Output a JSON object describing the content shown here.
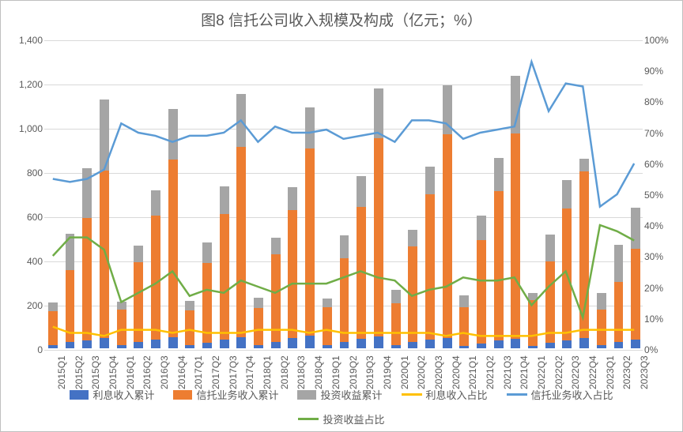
{
  "title": "图8  信托公司收入规模及构成（亿元；%）",
  "colors": {
    "bar_interest": "#4472c4",
    "bar_trust": "#ed7d31",
    "bar_invest": "#a5a5a5",
    "line_interest": "#ffc000",
    "line_trust": "#5b9bd5",
    "line_invest": "#70ad47",
    "gridline": "#d9d9d9",
    "text": "#595959",
    "background": "#ffffff"
  },
  "left_axis": {
    "min": 0,
    "max": 1400,
    "step": 200
  },
  "right_axis": {
    "min": 0,
    "max": 100,
    "step": 10
  },
  "categories": [
    "2015Q1",
    "2015Q2",
    "2015Q3",
    "2015Q4",
    "2016Q1",
    "2016Q2",
    "2016Q3",
    "2016Q4",
    "2017Q1",
    "2017Q2",
    "2017Q3",
    "2017Q4",
    "2018Q1",
    "2018Q2",
    "2018Q3",
    "2018Q4",
    "2019Q1",
    "2019Q2",
    "2019Q3",
    "2019Q4",
    "2020Q1",
    "2020Q2",
    "2020Q3",
    "2020Q4",
    "2021Q1",
    "2021Q2",
    "2021Q3",
    "2021Q4",
    "2022Q1",
    "2022Q2",
    "2022Q3",
    "2022Q4",
    "2023Q1",
    "2023Q2",
    "2023Q3"
  ],
  "bars": {
    "interest": [
      14,
      27,
      35,
      45,
      13,
      27,
      40,
      49,
      13,
      25,
      38,
      49,
      14,
      29,
      45,
      58,
      13,
      28,
      42,
      54,
      13,
      27,
      40,
      48,
      11,
      22,
      34,
      42,
      11,
      24,
      36,
      48,
      15,
      29,
      40
    ],
    "trust": [
      155,
      325,
      555,
      760,
      162,
      362,
      560,
      805,
      160,
      362,
      570,
      860,
      168,
      395,
      580,
      845,
      172,
      378,
      597,
      895,
      192,
      435,
      655,
      920,
      175,
      468,
      677,
      930,
      206,
      370,
      595,
      753,
      160,
      270,
      410
    ],
    "invest": [
      40,
      165,
      225,
      320,
      35,
      75,
      115,
      230,
      40,
      90,
      125,
      242,
      48,
      75,
      105,
      187,
      40,
      105,
      140,
      225,
      60,
      72,
      127,
      220,
      52,
      110,
      148,
      260,
      32,
      122,
      130,
      55,
      75,
      170,
      185
    ]
  },
  "lines": {
    "interest_pct": [
      7,
      5,
      5,
      4,
      6,
      6,
      6,
      5,
      6,
      5,
      5,
      5,
      6,
      6,
      6,
      5,
      6,
      5,
      5,
      5,
      5,
      5,
      5,
      4,
      5,
      4,
      4,
      4,
      4,
      5,
      5,
      6,
      6,
      6,
      6
    ],
    "trust_pct": [
      55,
      54,
      55,
      58,
      73,
      70,
      69,
      67,
      69,
      69,
      70,
      74,
      67,
      72,
      70,
      70,
      71,
      68,
      69,
      70,
      67,
      74,
      74,
      73,
      68,
      70,
      71,
      72,
      93,
      77,
      86,
      85,
      46,
      50,
      60
    ],
    "invest_pct": [
      30,
      36,
      36,
      32,
      15,
      18,
      21,
      25,
      17,
      19,
      18,
      22,
      20,
      18,
      21,
      21,
      21,
      23,
      25,
      23,
      22,
      17,
      19,
      20,
      23,
      22,
      22,
      23,
      14,
      20,
      25,
      10,
      40,
      38,
      35
    ]
  },
  "legend": {
    "bar_interest": "利息收入累计",
    "bar_trust": "信托业务收入累计",
    "bar_invest": "投资收益累计",
    "line_interest": "利息收入占比",
    "line_trust": "信托业务收入占比",
    "line_invest": "投资收益占比"
  }
}
